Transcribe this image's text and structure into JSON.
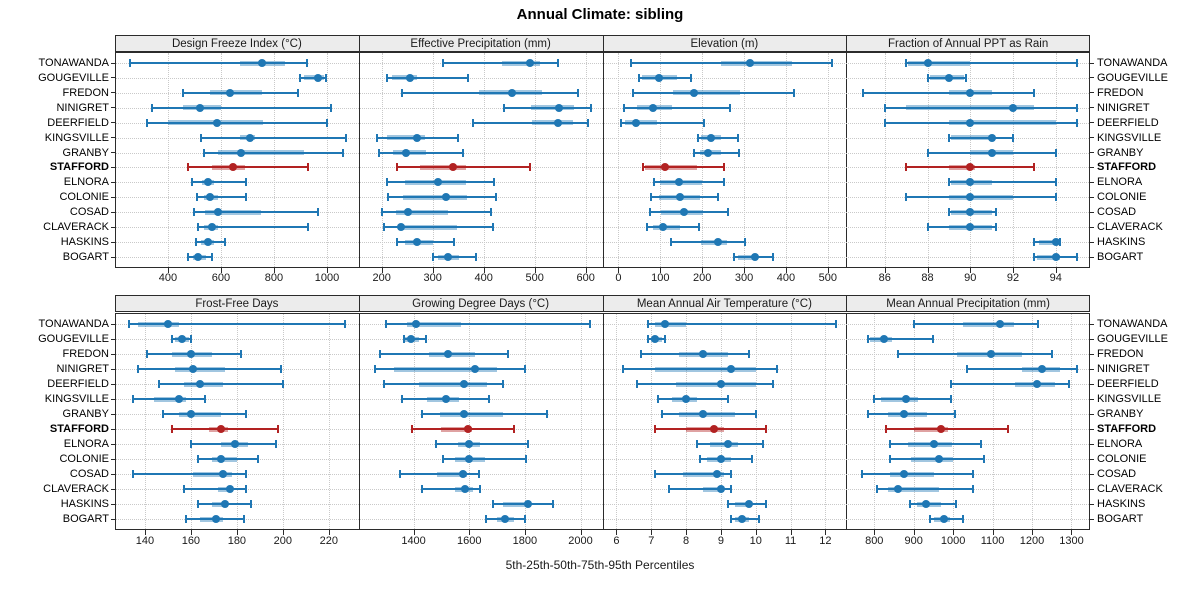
{
  "title": "Annual Climate: sibling",
  "xaxis_title": "5th-25th-50th-75th-95th Percentiles",
  "colors": {
    "series_blue": "#1f77b4",
    "highlight_red": "#b22222",
    "strip_background": "#ececec",
    "gridline_gray": "#c9c9c9",
    "border_black": "#2b2b2b"
  },
  "chart_data": {
    "type": "scatter",
    "subtype": "trellis-percentile-interval-dotplot",
    "grid": true,
    "percentiles": [
      5,
      25,
      50,
      75,
      95
    ],
    "categories": [
      "TONAWANDA",
      "GOUGEVILLE",
      "FREDON",
      "NINIGRET",
      "DEERFIELD",
      "KINGSVILLE",
      "GRANBY",
      "STAFFORD",
      "ELNORA",
      "COLONIE",
      "COSAD",
      "CLAVERACK",
      "HASKINS",
      "BOGART"
    ],
    "highlight_category": "STAFFORD",
    "panels": [
      {
        "title": "Design Freeze Index (°C)",
        "row": 0,
        "col": 0,
        "xlim": [
          200,
          1120
        ],
        "ticks": [
          400,
          600,
          800,
          1000
        ],
        "values": [
          [
            255,
            670,
            755,
            840,
            925
          ],
          [
            900,
            912,
            965,
            990,
            997
          ],
          [
            455,
            560,
            635,
            755,
            890
          ],
          [
            340,
            455,
            520,
            600,
            1015
          ],
          [
            320,
            400,
            585,
            760,
            1000
          ],
          [
            525,
            670,
            710,
            730,
            1070
          ],
          [
            535,
            590,
            675,
            915,
            1060
          ],
          [
            475,
            565,
            645,
            690,
            930
          ],
          [
            490,
            530,
            550,
            575,
            695
          ],
          [
            510,
            535,
            560,
            590,
            695
          ],
          [
            500,
            540,
            590,
            750,
            965
          ],
          [
            515,
            535,
            565,
            590,
            930
          ],
          [
            505,
            525,
            550,
            575,
            615
          ],
          [
            475,
            495,
            515,
            545,
            565
          ]
        ]
      },
      {
        "title": "Effective Precipitation (mm)",
        "row": 0,
        "col": 1,
        "xlim": [
          155,
          633
        ],
        "ticks": [
          200,
          300,
          400,
          500,
          600
        ],
        "values": [
          [
            320,
            435,
            490,
            510,
            545
          ],
          [
            210,
            220,
            255,
            270,
            370
          ],
          [
            240,
            390,
            455,
            515,
            585
          ],
          [
            440,
            492,
            548,
            577,
            610
          ],
          [
            380,
            494,
            546,
            576,
            605
          ],
          [
            190,
            210,
            270,
            285,
            350
          ],
          [
            195,
            223,
            247,
            287,
            360
          ],
          [
            230,
            275,
            340,
            365,
            490
          ],
          [
            210,
            245,
            310,
            365,
            420
          ],
          [
            213,
            241,
            326,
            367,
            425
          ],
          [
            200,
            228,
            252,
            330,
            415
          ],
          [
            205,
            231,
            237,
            348,
            418
          ],
          [
            230,
            245,
            270,
            300,
            342
          ],
          [
            300,
            311,
            331,
            351,
            385
          ]
        ]
      },
      {
        "title": "Elevation (m)",
        "row": 0,
        "col": 2,
        "xlim": [
          -38,
          544
        ],
        "ticks": [
          0,
          100,
          200,
          300,
          400,
          500
        ],
        "values": [
          [
            30,
            245,
            315,
            415,
            510
          ],
          [
            50,
            57,
            97,
            140,
            174
          ],
          [
            35,
            130,
            180,
            290,
            420
          ],
          [
            13,
            45,
            82,
            127,
            267
          ],
          [
            5,
            16,
            43,
            92,
            205
          ],
          [
            190,
            196,
            220,
            245,
            286
          ],
          [
            180,
            195,
            215,
            246,
            288
          ],
          [
            59,
            64,
            111,
            188,
            252
          ],
          [
            85,
            100,
            144,
            200,
            252
          ],
          [
            78,
            97,
            148,
            196,
            237
          ],
          [
            75,
            101,
            156,
            202,
            262
          ],
          [
            68,
            82,
            107,
            147,
            192
          ],
          [
            125,
            196,
            237,
            260,
            303
          ],
          [
            275,
            285,
            327,
            332,
            370
          ]
        ]
      },
      {
        "title": "Fraction of Annual PPT as Rain",
        "row": 0,
        "col": 3,
        "xlim": [
          84.2,
          95.6
        ],
        "ticks": [
          86,
          88,
          90,
          92,
          94
        ],
        "values": [
          [
            87,
            87.1,
            88,
            90,
            95
          ],
          [
            88,
            88.1,
            89,
            89.7,
            89.8
          ],
          [
            85,
            89,
            90,
            91,
            93
          ],
          [
            86,
            87,
            92,
            93,
            95
          ],
          [
            86,
            89,
            90,
            94,
            95
          ],
          [
            89,
            89.1,
            91,
            91.1,
            92
          ],
          [
            88,
            90,
            91,
            92,
            94
          ],
          [
            87,
            89,
            90,
            90.2,
            93
          ],
          [
            89,
            89.1,
            90,
            91,
            94
          ],
          [
            87,
            89,
            90,
            92,
            94
          ],
          [
            89,
            89.1,
            90,
            91,
            91.2
          ],
          [
            88,
            89,
            90,
            91,
            91.2
          ],
          [
            93,
            93.2,
            94,
            94.1,
            94.2
          ],
          [
            93,
            93.1,
            94,
            94.2,
            95
          ]
        ]
      },
      {
        "title": "Frost-Free Days",
        "row": 1,
        "col": 0,
        "xlim": [
          127,
          233
        ],
        "ticks": [
          140,
          160,
          180,
          200,
          220
        ],
        "values": [
          [
            133,
            137,
            150,
            155,
            227
          ],
          [
            152,
            153,
            156,
            159,
            160
          ],
          [
            141,
            152,
            160,
            169,
            182
          ],
          [
            137,
            153,
            161,
            175,
            199
          ],
          [
            146,
            157,
            164,
            174,
            200
          ],
          [
            135,
            144,
            155,
            158,
            166
          ],
          [
            148,
            155,
            160,
            173,
            184
          ],
          [
            152,
            168,
            173,
            176,
            198
          ],
          [
            160,
            173,
            179,
            185,
            197
          ],
          [
            163,
            169,
            173,
            180,
            189
          ],
          [
            135,
            161,
            174,
            178,
            184
          ],
          [
            157,
            172,
            177,
            178,
            184
          ],
          [
            163,
            169,
            175,
            176,
            186
          ],
          [
            158,
            164,
            171,
            174,
            183
          ]
        ]
      },
      {
        "title": "Growing Degree Days (°C)",
        "row": 1,
        "col": 1,
        "xlim": [
          1203,
          2079
        ],
        "ticks": [
          1400,
          1600,
          1800,
          2000
        ],
        "values": [
          [
            1300,
            1375,
            1410,
            1570,
            2035
          ],
          [
            1365,
            1370,
            1390,
            1420,
            1445
          ],
          [
            1280,
            1455,
            1525,
            1620,
            1740
          ],
          [
            1260,
            1330,
            1620,
            1700,
            1800
          ],
          [
            1295,
            1420,
            1580,
            1665,
            1720
          ],
          [
            1360,
            1450,
            1515,
            1565,
            1670
          ],
          [
            1430,
            1495,
            1580,
            1720,
            1880
          ],
          [
            1395,
            1500,
            1595,
            1610,
            1760
          ],
          [
            1480,
            1560,
            1600,
            1640,
            1810
          ],
          [
            1505,
            1550,
            1600,
            1655,
            1805
          ],
          [
            1350,
            1485,
            1578,
            1592,
            1635
          ],
          [
            1430,
            1550,
            1585,
            1615,
            1640
          ],
          [
            1685,
            1720,
            1810,
            1820,
            1900
          ],
          [
            1660,
            1700,
            1730,
            1760,
            1800
          ]
        ]
      },
      {
        "title": "Mean Annual Air Temperature (°C)",
        "row": 1,
        "col": 2,
        "xlim": [
          5.6,
          12.6
        ],
        "ticks": [
          6,
          7,
          8,
          9,
          10,
          11,
          12
        ],
        "values": [
          [
            6.9,
            7.1,
            7.4,
            8.0,
            12.3
          ],
          [
            6.9,
            7.0,
            7.1,
            7.3,
            7.4
          ],
          [
            6.7,
            7.8,
            8.5,
            9.2,
            9.8
          ],
          [
            6.2,
            7.1,
            9.3,
            10.0,
            10.6
          ],
          [
            6.6,
            7.7,
            9.0,
            10.0,
            10.5
          ],
          [
            7.2,
            7.6,
            8.0,
            8.3,
            9.2
          ],
          [
            7.3,
            7.8,
            8.5,
            9.4,
            10.0
          ],
          [
            7.1,
            8.0,
            8.8,
            9.1,
            10.3
          ],
          [
            8.3,
            8.7,
            9.2,
            9.5,
            10.2
          ],
          [
            8.4,
            8.6,
            9.0,
            9.3,
            9.9
          ],
          [
            7.1,
            7.9,
            8.9,
            9.1,
            9.3
          ],
          [
            7.5,
            8.5,
            9.0,
            9.1,
            9.3
          ],
          [
            9.2,
            9.4,
            9.8,
            9.9,
            10.3
          ],
          [
            9.3,
            9.4,
            9.6,
            9.8,
            10.1
          ]
        ]
      },
      {
        "title": "Mean Annual Precipitation (mm)",
        "row": 1,
        "col": 3,
        "xlim": [
          729,
          1347
        ],
        "ticks": [
          800,
          900,
          1000,
          1100,
          1200,
          1300
        ],
        "values": [
          [
            900,
            1025,
            1120,
            1155,
            1215
          ],
          [
            785,
            790,
            825,
            845,
            950
          ],
          [
            860,
            1010,
            1095,
            1175,
            1250
          ],
          [
            1035,
            1175,
            1225,
            1270,
            1315
          ],
          [
            995,
            1158,
            1213,
            1257,
            1295
          ],
          [
            800,
            817,
            880,
            910,
            995
          ],
          [
            785,
            835,
            876,
            933,
            1005
          ],
          [
            830,
            900,
            968,
            986,
            1140
          ],
          [
            840,
            886,
            952,
            997,
            1070
          ],
          [
            840,
            893,
            963,
            1000,
            1078
          ],
          [
            770,
            840,
            876,
            952,
            1050
          ],
          [
            807,
            834,
            861,
            963,
            1050
          ],
          [
            890,
            908,
            931,
            970,
            1007
          ],
          [
            942,
            951,
            976,
            993,
            1025
          ]
        ]
      }
    ]
  }
}
